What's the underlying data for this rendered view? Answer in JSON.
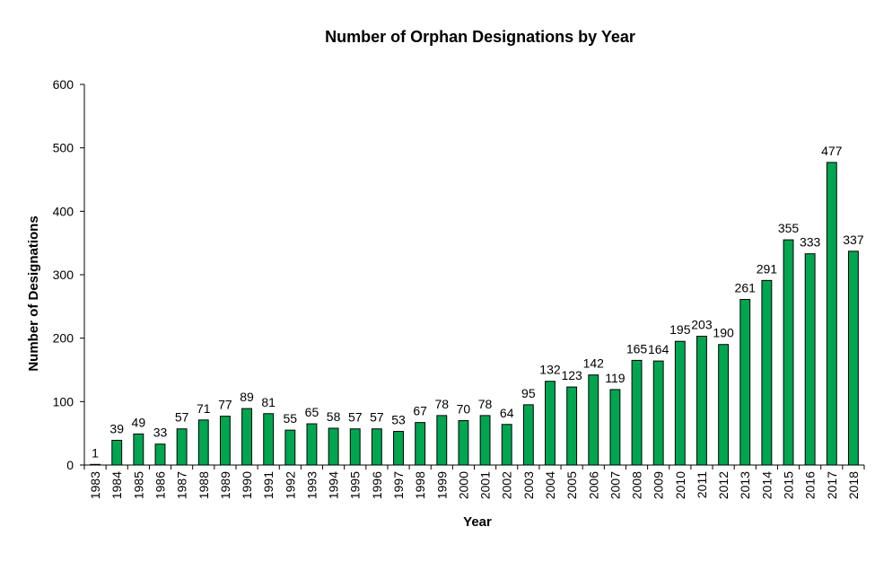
{
  "chart_data": {
    "type": "bar",
    "title": "Number of Orphan Designations  by Year",
    "xlabel": "Year",
    "ylabel": "Number  of Designations",
    "ylim": [
      0,
      600
    ],
    "yticks": [
      0,
      100,
      200,
      300,
      400,
      500,
      600
    ],
    "grid": false,
    "legend": "none",
    "bar_color": "#00a550",
    "categories": [
      "1983",
      "1984",
      "1985",
      "1986",
      "1987",
      "1988",
      "1989",
      "1990",
      "1991",
      "1992",
      "1993",
      "1994",
      "1995",
      "1996",
      "1997",
      "1998",
      "1999",
      "2000",
      "2001",
      "2002",
      "2003",
      "2004",
      "2005",
      "2006",
      "2007",
      "2008",
      "2009",
      "2010",
      "2011",
      "2012",
      "2013",
      "2014",
      "2015",
      "2016",
      "2017",
      "2018"
    ],
    "values": [
      1,
      39,
      49,
      33,
      57,
      71,
      77,
      89,
      81,
      55,
      65,
      58,
      57,
      57,
      53,
      67,
      78,
      70,
      78,
      64,
      95,
      132,
      123,
      142,
      119,
      165,
      164,
      195,
      203,
      190,
      261,
      291,
      355,
      333,
      477,
      337
    ]
  }
}
